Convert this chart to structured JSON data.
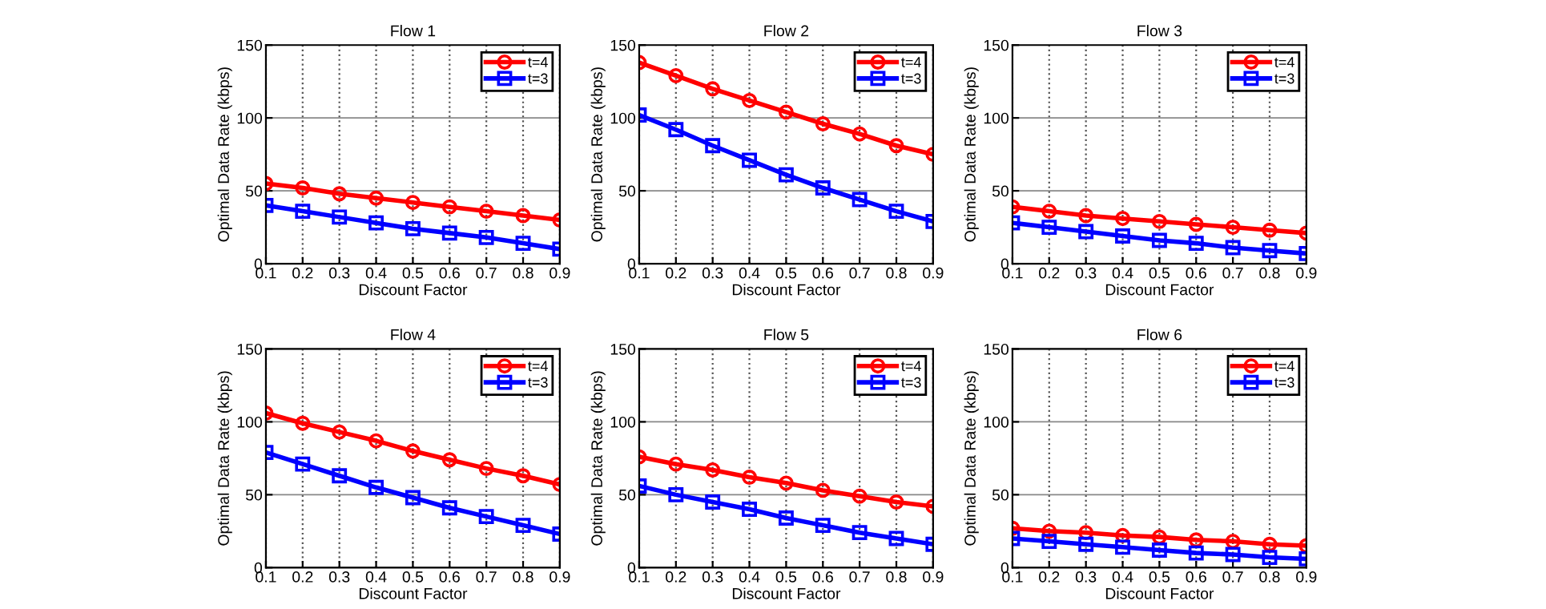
{
  "chart_data": [
    {
      "type": "line",
      "title": "Flow 1",
      "xlabel": "Discount Factor",
      "ylabel": "Optimal Data Rate (kbps)",
      "x": [
        0.1,
        0.2,
        0.3,
        0.4,
        0.5,
        0.6,
        0.7,
        0.8,
        0.9
      ],
      "xlim": [
        0.1,
        0.9
      ],
      "xticks": [
        0.1,
        0.2,
        0.3,
        0.4,
        0.5,
        0.6,
        0.7,
        0.8,
        0.9
      ],
      "ylim": [
        0,
        150
      ],
      "yticks": [
        0,
        50,
        100,
        150
      ],
      "grid": true,
      "legend": "top right",
      "series": [
        {
          "name": "t=4",
          "color": "#ff0000",
          "marker": "circle",
          "values": [
            55,
            52,
            48,
            45,
            42,
            39,
            36,
            33,
            30
          ]
        },
        {
          "name": "t=3",
          "color": "#0000ff",
          "marker": "square",
          "values": [
            40,
            36,
            32,
            28,
            24,
            21,
            18,
            14,
            10
          ]
        }
      ]
    },
    {
      "type": "line",
      "title": "Flow 2",
      "xlabel": "Discount Factor",
      "ylabel": "Optimal Data Rate (kbps)",
      "x": [
        0.1,
        0.2,
        0.3,
        0.4,
        0.5,
        0.6,
        0.7,
        0.8,
        0.9
      ],
      "xlim": [
        0.1,
        0.9
      ],
      "xticks": [
        0.1,
        0.2,
        0.3,
        0.4,
        0.5,
        0.6,
        0.7,
        0.8,
        0.9
      ],
      "ylim": [
        0,
        150
      ],
      "yticks": [
        0,
        50,
        100,
        150
      ],
      "grid": true,
      "legend": "top right",
      "series": [
        {
          "name": "t=4",
          "color": "#ff0000",
          "marker": "circle",
          "values": [
            138,
            129,
            120,
            112,
            104,
            96,
            89,
            81,
            75
          ]
        },
        {
          "name": "t=3",
          "color": "#0000ff",
          "marker": "square",
          "values": [
            102,
            92,
            81,
            71,
            61,
            52,
            44,
            36,
            29
          ]
        }
      ]
    },
    {
      "type": "line",
      "title": "Flow 3",
      "xlabel": "Discount Factor",
      "ylabel": "Optimal Data Rate (kbps)",
      "x": [
        0.1,
        0.2,
        0.3,
        0.4,
        0.5,
        0.6,
        0.7,
        0.8,
        0.9
      ],
      "xlim": [
        0.1,
        0.9
      ],
      "xticks": [
        0.1,
        0.2,
        0.3,
        0.4,
        0.5,
        0.6,
        0.7,
        0.8,
        0.9
      ],
      "ylim": [
        0,
        150
      ],
      "yticks": [
        0,
        50,
        100,
        150
      ],
      "grid": true,
      "legend": "top right",
      "series": [
        {
          "name": "t=4",
          "color": "#ff0000",
          "marker": "circle",
          "values": [
            39,
            36,
            33,
            31,
            29,
            27,
            25,
            23,
            21
          ]
        },
        {
          "name": "t=3",
          "color": "#0000ff",
          "marker": "square",
          "values": [
            28,
            25,
            22,
            19,
            16,
            14,
            11,
            9,
            7
          ]
        }
      ]
    },
    {
      "type": "line",
      "title": "Flow 4",
      "xlabel": "Discount Factor",
      "ylabel": "Optimal Data Rate (kbps)",
      "x": [
        0.1,
        0.2,
        0.3,
        0.4,
        0.5,
        0.6,
        0.7,
        0.8,
        0.9
      ],
      "xlim": [
        0.1,
        0.9
      ],
      "xticks": [
        0.1,
        0.2,
        0.3,
        0.4,
        0.5,
        0.6,
        0.7,
        0.8,
        0.9
      ],
      "ylim": [
        0,
        150
      ],
      "yticks": [
        0,
        50,
        100,
        150
      ],
      "grid": true,
      "legend": "top right",
      "series": [
        {
          "name": "t=4",
          "color": "#ff0000",
          "marker": "circle",
          "values": [
            106,
            99,
            93,
            87,
            80,
            74,
            68,
            63,
            57
          ]
        },
        {
          "name": "t=3",
          "color": "#0000ff",
          "marker": "square",
          "values": [
            79,
            71,
            63,
            55,
            48,
            41,
            35,
            29,
            23
          ]
        }
      ]
    },
    {
      "type": "line",
      "title": "Flow 5",
      "xlabel": "Discount Factor",
      "ylabel": "Optimal Data Rate (kbps)",
      "x": [
        0.1,
        0.2,
        0.3,
        0.4,
        0.5,
        0.6,
        0.7,
        0.8,
        0.9
      ],
      "xlim": [
        0.1,
        0.9
      ],
      "xticks": [
        0.1,
        0.2,
        0.3,
        0.4,
        0.5,
        0.6,
        0.7,
        0.8,
        0.9
      ],
      "ylim": [
        0,
        150
      ],
      "yticks": [
        0,
        50,
        100,
        150
      ],
      "grid": true,
      "legend": "top right",
      "series": [
        {
          "name": "t=4",
          "color": "#ff0000",
          "marker": "circle",
          "values": [
            76,
            71,
            67,
            62,
            58,
            53,
            49,
            45,
            42
          ]
        },
        {
          "name": "t=3",
          "color": "#0000ff",
          "marker": "square",
          "values": [
            56,
            50,
            45,
            40,
            34,
            29,
            24,
            20,
            16
          ]
        }
      ]
    },
    {
      "type": "line",
      "title": "Flow 6",
      "xlabel": "Discount Factor",
      "ylabel": "Optimal Data Rate (kbps)",
      "x": [
        0.1,
        0.2,
        0.3,
        0.4,
        0.5,
        0.6,
        0.7,
        0.8,
        0.9
      ],
      "xlim": [
        0.1,
        0.9
      ],
      "xticks": [
        0.1,
        0.2,
        0.3,
        0.4,
        0.5,
        0.6,
        0.7,
        0.8,
        0.9
      ],
      "ylim": [
        0,
        150
      ],
      "yticks": [
        0,
        50,
        100,
        150
      ],
      "grid": true,
      "legend": "top right",
      "series": [
        {
          "name": "t=4",
          "color": "#ff0000",
          "marker": "circle",
          "values": [
            27,
            25,
            24,
            22,
            21,
            19,
            18,
            16,
            15
          ]
        },
        {
          "name": "t=3",
          "color": "#0000ff",
          "marker": "square",
          "values": [
            20,
            18,
            16,
            14,
            12,
            10,
            9,
            7,
            6
          ]
        }
      ]
    }
  ]
}
